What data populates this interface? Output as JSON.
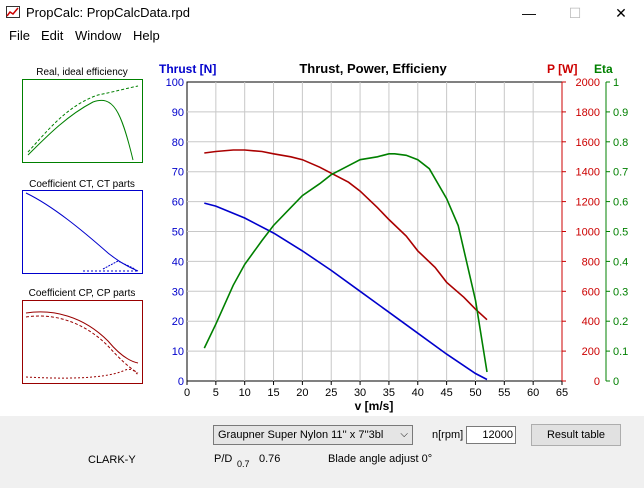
{
  "window": {
    "title": "PropCalc: PropCalcData.rpd",
    "minimize_glyph": "—",
    "maximize_glyph": "☐",
    "close_glyph": "✕",
    "icon": "propcalc-app-icon"
  },
  "menu": {
    "items": [
      "File",
      "Edit",
      "Window",
      "Help"
    ]
  },
  "thumbnails": [
    {
      "label": "Real, ideal efficiency",
      "color": "#008000"
    },
    {
      "label": "Coefficient CT, CT parts",
      "color": "#0000cc"
    },
    {
      "label": "Coefficient CP, CP parts",
      "color": "#990000"
    }
  ],
  "chart_data": {
    "type": "line",
    "title": "Thrust, Power, Efficieny",
    "xlabel": "v [m/s]",
    "xlim": [
      0,
      65
    ],
    "x_ticks": [
      "0",
      "5",
      "10",
      "15",
      "20",
      "25",
      "30",
      "35",
      "40",
      "45",
      "50",
      "55",
      "60",
      "65"
    ],
    "axes": [
      {
        "label": "Thrust [N]",
        "color": "#0000cc",
        "side": "left",
        "lim": [
          0,
          100
        ],
        "ticks": [
          "0",
          "10",
          "20",
          "30",
          "40",
          "50",
          "60",
          "70",
          "80",
          "90",
          "100"
        ]
      },
      {
        "label": "P [W]",
        "color": "#cc0000",
        "side": "right",
        "lim": [
          0,
          2000
        ],
        "ticks": [
          "0",
          "200",
          "400",
          "600",
          "800",
          "1000",
          "1200",
          "1400",
          "1600",
          "1800",
          "2000"
        ]
      },
      {
        "label": "Eta",
        "color": "#008000",
        "side": "right",
        "lim": [
          0,
          1
        ],
        "ticks": [
          "0",
          "0.1",
          "0.2",
          "0.3",
          "0.4",
          "0.5",
          "0.6",
          "0.7",
          "0.8",
          "0.9",
          "1"
        ]
      }
    ],
    "series": [
      {
        "axis": 0,
        "color": "#0000cc",
        "x": [
          3,
          5,
          10,
          15,
          20,
          25,
          30,
          35,
          40,
          45,
          50,
          52
        ],
        "y": [
          59.5,
          58.5,
          54.5,
          49.5,
          43.5,
          37,
          30,
          23,
          16,
          9,
          2.5,
          0.5
        ]
      },
      {
        "axis": 1,
        "color": "#aa0000",
        "x": [
          3,
          5,
          8,
          10,
          13,
          15,
          18,
          20,
          23,
          25,
          28,
          30,
          33,
          35,
          38,
          40,
          43,
          45,
          48,
          50,
          52
        ],
        "y": [
          1525,
          1535,
          1545,
          1545,
          1535,
          1520,
          1500,
          1480,
          1430,
          1390,
          1330,
          1270,
          1160,
          1080,
          970,
          870,
          760,
          660,
          560,
          480,
          410
        ]
      },
      {
        "axis": 2,
        "color": "#008000",
        "x": [
          3,
          5,
          8,
          10,
          13,
          15,
          18,
          20,
          23,
          25,
          28,
          30,
          33,
          35,
          36,
          38,
          40,
          42,
          45,
          47,
          50,
          52
        ],
        "y": [
          0.11,
          0.19,
          0.32,
          0.39,
          0.47,
          0.52,
          0.58,
          0.62,
          0.66,
          0.69,
          0.72,
          0.74,
          0.75,
          0.76,
          0.76,
          0.755,
          0.74,
          0.71,
          0.61,
          0.52,
          0.27,
          0.03
        ]
      }
    ]
  },
  "controls": {
    "propeller_select": "Graupner Super Nylon 11'' x 7''3bl",
    "rpm_label": "n[rpm]",
    "rpm_value": "12000",
    "result_button": "Result table",
    "airfoil": "CLARK-Y",
    "pd_label": "P/D",
    "pd_sub": "0.7",
    "pd_value": "0.76",
    "blade_angle": "Blade angle adjust 0°"
  }
}
